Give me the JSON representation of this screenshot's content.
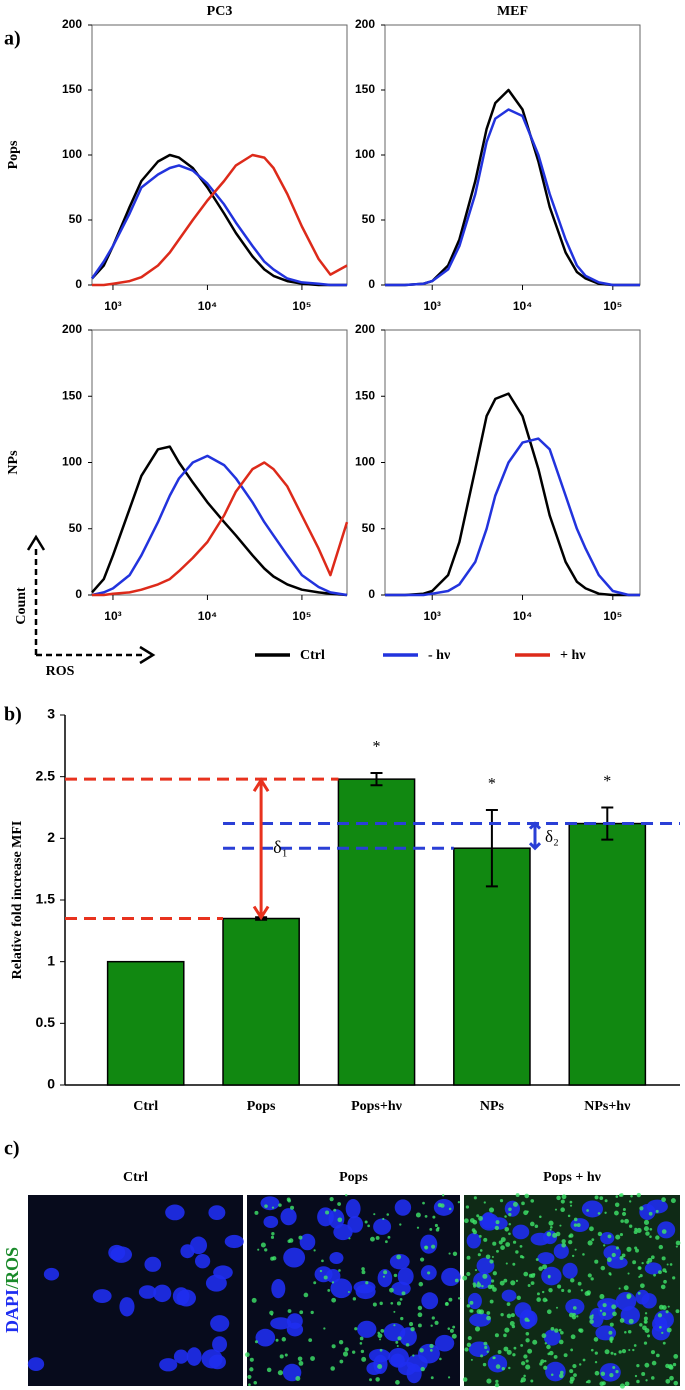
{
  "panel_labels": [
    "a)",
    "b)",
    "c)"
  ],
  "legend_arrows": {
    "y": "Count",
    "x": "ROS"
  },
  "chart_data": [
    {
      "type": "line",
      "title": "PC3",
      "ylabel": "Pops",
      "xlog": true,
      "x": [
        600,
        800,
        1000,
        1500,
        2000,
        3000,
        4000,
        5000,
        7000,
        10000,
        15000,
        20000,
        30000,
        40000,
        50000,
        70000,
        100000,
        150000,
        200000,
        300000
      ],
      "xlim": [
        600,
        300000
      ],
      "xticks": [
        {
          "value": 1000,
          "label": "10³"
        },
        {
          "value": 10000,
          "label": "10⁴"
        },
        {
          "value": 100000,
          "label": "10⁵"
        }
      ],
      "ylim": [
        0,
        200
      ],
      "yticks": [
        0,
        50,
        100,
        150,
        200
      ],
      "series": [
        {
          "name": "Ctrl",
          "color": "#000000",
          "values": [
            5,
            15,
            30,
            60,
            80,
            95,
            100,
            98,
            90,
            75,
            55,
            40,
            22,
            12,
            7,
            3,
            1,
            0,
            0,
            0
          ]
        },
        {
          "name": "- hν",
          "color": "#2233dd",
          "values": [
            5,
            18,
            30,
            55,
            75,
            85,
            90,
            92,
            88,
            78,
            62,
            48,
            30,
            18,
            12,
            5,
            2,
            1,
            0,
            0
          ]
        },
        {
          "name": "+ hν",
          "color": "#dd2a1a",
          "values": [
            0,
            0,
            1,
            3,
            6,
            15,
            25,
            35,
            50,
            65,
            80,
            92,
            100,
            98,
            90,
            70,
            45,
            20,
            8,
            15
          ]
        }
      ]
    },
    {
      "type": "line",
      "title": "MEF",
      "xlog": true,
      "x": [
        300,
        500,
        800,
        1000,
        1500,
        2000,
        3000,
        4000,
        5000,
        7000,
        10000,
        15000,
        20000,
        30000,
        40000,
        50000,
        70000,
        100000,
        150000,
        200000
      ],
      "xlim": [
        300,
        200000
      ],
      "xticks": [
        {
          "value": 1000,
          "label": "10³"
        },
        {
          "value": 10000,
          "label": "10⁴"
        },
        {
          "value": 100000,
          "label": "10⁵"
        }
      ],
      "ylim": [
        0,
        200
      ],
      "yticks": [
        0,
        50,
        100,
        150,
        200
      ],
      "series": [
        {
          "name": "Ctrl",
          "color": "#000000",
          "values": [
            0,
            0,
            1,
            3,
            15,
            35,
            80,
            120,
            140,
            150,
            135,
            95,
            60,
            25,
            10,
            5,
            1,
            0,
            0,
            0
          ]
        },
        {
          "name": "- hν",
          "color": "#2233dd",
          "values": [
            0,
            0,
            1,
            3,
            12,
            30,
            70,
            110,
            128,
            135,
            130,
            100,
            70,
            35,
            15,
            7,
            2,
            0,
            0,
            0
          ]
        }
      ]
    },
    {
      "type": "line",
      "ylabel": "NPs",
      "xlog": true,
      "x": [
        600,
        800,
        1000,
        1500,
        2000,
        3000,
        4000,
        5000,
        7000,
        10000,
        15000,
        20000,
        30000,
        40000,
        50000,
        70000,
        100000,
        150000,
        200000,
        300000
      ],
      "xlim": [
        600,
        300000
      ],
      "xticks": [
        {
          "value": 1000,
          "label": "10³"
        },
        {
          "value": 10000,
          "label": "10⁴"
        },
        {
          "value": 100000,
          "label": "10⁵"
        }
      ],
      "ylim": [
        0,
        200
      ],
      "yticks": [
        0,
        50,
        100,
        150,
        200
      ],
      "series": [
        {
          "name": "Ctrl",
          "color": "#000000",
          "values": [
            2,
            12,
            30,
            65,
            90,
            110,
            112,
            100,
            85,
            70,
            55,
            45,
            30,
            20,
            14,
            8,
            4,
            2,
            1,
            0
          ]
        },
        {
          "name": "- hν",
          "color": "#2233dd",
          "values": [
            0,
            2,
            5,
            15,
            30,
            55,
            75,
            88,
            100,
            105,
            98,
            88,
            70,
            55,
            45,
            30,
            15,
            6,
            2,
            0
          ]
        },
        {
          "name": "+ hν",
          "color": "#dd2a1a",
          "values": [
            0,
            0,
            1,
            2,
            4,
            8,
            12,
            18,
            28,
            40,
            60,
            78,
            95,
            100,
            95,
            82,
            60,
            35,
            15,
            55
          ]
        }
      ]
    },
    {
      "type": "line",
      "xlog": true,
      "x": [
        300,
        500,
        800,
        1000,
        1500,
        2000,
        3000,
        4000,
        5000,
        7000,
        10000,
        15000,
        20000,
        30000,
        40000,
        50000,
        70000,
        100000,
        150000,
        200000
      ],
      "xlim": [
        300,
        200000
      ],
      "xticks": [
        {
          "value": 1000,
          "label": "10³"
        },
        {
          "value": 10000,
          "label": "10⁴"
        },
        {
          "value": 100000,
          "label": "10⁵"
        }
      ],
      "ylim": [
        0,
        200
      ],
      "yticks": [
        0,
        50,
        100,
        150,
        200
      ],
      "series": [
        {
          "name": "Ctrl",
          "color": "#000000",
          "values": [
            0,
            0,
            1,
            3,
            15,
            40,
            95,
            135,
            148,
            152,
            135,
            95,
            60,
            25,
            10,
            5,
            1,
            0,
            0,
            0
          ]
        },
        {
          "name": "- hν",
          "color": "#2233dd",
          "values": [
            0,
            0,
            0,
            1,
            3,
            8,
            25,
            50,
            75,
            100,
            115,
            118,
            110,
            75,
            50,
            35,
            15,
            3,
            0,
            0
          ]
        }
      ]
    },
    {
      "type": "bar",
      "ylabel": "Relative fold increase MFI",
      "categories": [
        "Ctrl",
        "Pops",
        "Pops+hν",
        "NPs",
        "NPs+hν"
      ],
      "values": [
        1,
        1.35,
        2.48,
        1.92,
        2.12
      ],
      "errors": [
        0,
        0.01,
        0.05,
        0.31,
        0.13
      ],
      "significance": [
        null,
        null,
        "*",
        "*",
        "*"
      ],
      "color": "#118811",
      "ylim": [
        0,
        3
      ],
      "yticks": [
        0,
        0.5,
        1,
        1.5,
        2,
        2.5,
        3
      ],
      "annotations": [
        {
          "text": "δ₁",
          "color": "#e8321e"
        },
        {
          "text": "δ₂",
          "color": "#2a3fd6"
        }
      ]
    }
  ],
  "images": {
    "labels": [
      "Ctrl",
      "Pops",
      "Pops + hν"
    ],
    "stain": [
      "DAPI",
      "/ROS"
    ]
  }
}
